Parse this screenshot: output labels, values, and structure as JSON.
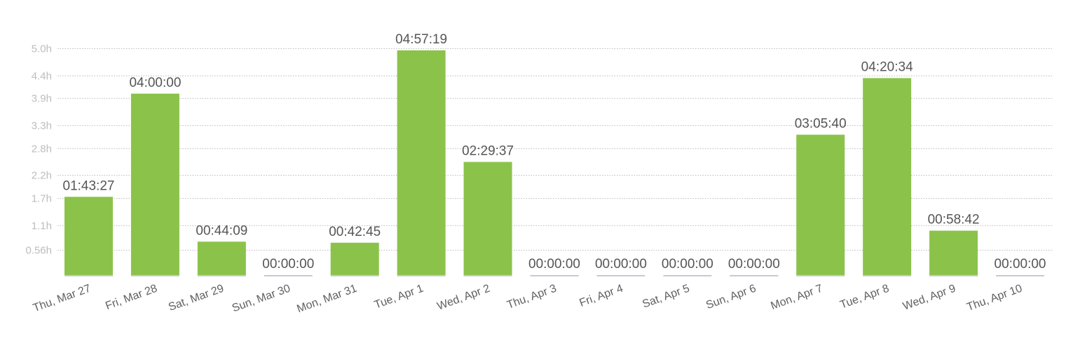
{
  "chart_data": {
    "type": "bar",
    "categories": [
      "Thu, Mar 27",
      "Fri, Mar 28",
      "Sat, Mar 29",
      "Sun, Mar 30",
      "Mon, Mar 31",
      "Tue, Apr 1",
      "Wed, Apr 2",
      "Thu, Apr 3",
      "Fri, Apr 4",
      "Sat, Apr 5",
      "Sun, Apr 6",
      "Mon, Apr 7",
      "Tue, Apr 8",
      "Wed, Apr 9",
      "Thu, Apr 10"
    ],
    "values": [
      1.7242,
      4.0,
      0.7358,
      0.0,
      0.7125,
      4.9553,
      2.4936,
      0.0,
      0.0,
      0.0,
      0.0,
      3.0944,
      4.3428,
      0.9783,
      0.0
    ],
    "data_labels": [
      "01:43:27",
      "04:00:00",
      "00:44:09",
      "00:00:00",
      "00:42:45",
      "04:57:19",
      "02:29:37",
      "00:00:00",
      "00:00:00",
      "00:00:00",
      "00:00:00",
      "03:05:40",
      "04:20:34",
      "00:58:42",
      "00:00:00"
    ],
    "yticks": [
      {
        "value": 0.56,
        "label": "0.56h"
      },
      {
        "value": 1.1,
        "label": "1.1h"
      },
      {
        "value": 1.7,
        "label": "1.7h"
      },
      {
        "value": 2.2,
        "label": "2.2h"
      },
      {
        "value": 2.8,
        "label": "2.8h"
      },
      {
        "value": 3.3,
        "label": "3.3h"
      },
      {
        "value": 3.9,
        "label": "3.9h"
      },
      {
        "value": 4.4,
        "label": "4.4h"
      },
      {
        "value": 5.0,
        "label": "5.0h"
      }
    ],
    "ylim": [
      0,
      5.0
    ],
    "grid": true,
    "title": "",
    "xlabel": "",
    "ylabel": "",
    "colors": {
      "bar": "#8bc34a",
      "baseline": "#c5cad6",
      "grid": "#bdbdbd",
      "ytick_text": "#bdbdbd",
      "xtick_text": "#616161",
      "data_label_text": "#555555"
    }
  }
}
